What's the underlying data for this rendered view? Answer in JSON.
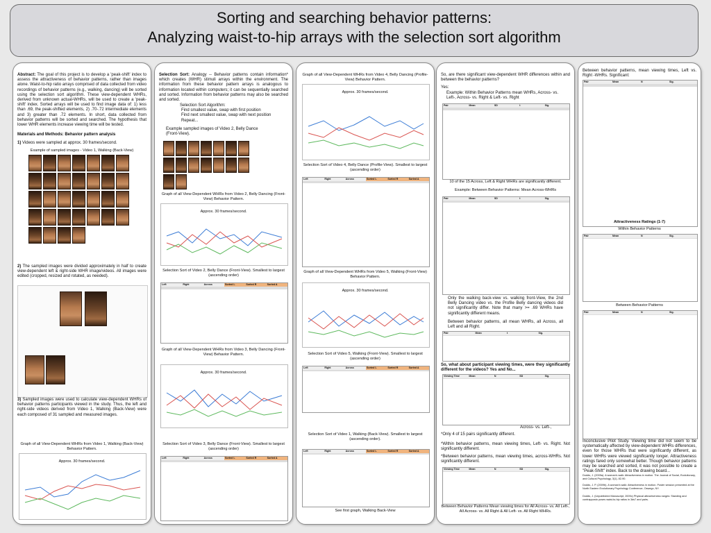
{
  "title": {
    "line1": "Sorting and searching behavior patterns:",
    "line2": "Analyzing waist-to-hip arrays with the selection sort algorithm"
  },
  "col1": {
    "abstract_label": "Abstract:",
    "abstract_text": "The goal of this project is to develop a 'peak-shift' index to assess the attractiveness of behavior patterns, rather than images alone. Waist-to-hip ratio arrays comprised of data collected from video recordings of behavior patterns (e.g., walking, dancing) will be sorted using the selection sort algorithm. These view-dependent WHRs, derived from unknown actual-WHRs, will be used to create a 'peak-shift' index. Sorted arrays will be used to find image data of: 1) less than .69, the peak-shifted elements, 2) .70-.72 intermediate elements and 3) greater than .72 elements. In short, data collected from behavior patterns will be sorted and searched. The hypothesis that lower WHR elements increase viewing time will be tested.",
    "methods_label": "Materials and Methods: Behavior pattern analysis",
    "step1": "Videos were sampled at approx. 30 frames/second.",
    "strip_caption": "Example of sampled images - Video 1, Walking (Back-View)",
    "step2": "The sampled images were divided approximately in half to create view-dependent left & right-side WHR image/videos. All images were edited (cropped, resized and rotated, as needed).",
    "step3": "Sampled images were used to calculate view-dependent WHRs of behavior patterns participants viewed in the study. Thus, the left and right-side videos derived from Video 1, Walking (Back-View) were each composed of 31 sampled and measured images.",
    "graph_caption": "Graph of all View-Dependent WHRs from Video 1, Walking (Back-View) Behavior Pattern.",
    "graph_label": "Approx. 30 frames/second.",
    "graph_axis": "WHRs"
  },
  "col2": {
    "selection_label": "Selection Sort:",
    "selection_text": "Analogy -- Behavior patterns contain information* which creates (WHR) stimuli arrays within the environment. The information from these behavior pattern arrays is analogous to information located within computers; it can be sequentially searched and sorted. Information from behavior patterns may also be searched and sorted.",
    "algo_title": "Selection Sort Algorithm:",
    "algo_step1": "Find smallest value, swap with first position",
    "algo_step2": "Find next smallest value, swap with next position",
    "algo_step3": "Repeat...",
    "video2_caption": "Example sampled images of Video 2, Belly Dance (Front-View).",
    "graph2_caption": "Graph of all View-Dependent WHRs from Video 2, Belly Dancing (Front-View) Behavior Pattern.",
    "graph2_label": "Approx. 30 frames/second.",
    "sort2_caption": "Selection Sort of Video 2, Belly Dance (Front-View). Smallest to largest (ascending order)",
    "graph3_caption": "Graph of all View-Dependent WHRs from Video 3, Belly Dancing (Front-View) Behavior Pattern.",
    "graph3_label": "Approx. 30 frames/second.",
    "sort3_caption": "Selection Sort of Video 3, Belly Dance (Front-View). Smallest to largest (ascending order)",
    "axis": "WHRs"
  },
  "col3": {
    "graph4_caption": "Graph of all View-Dependent WHRs from Video 4, Belly Dancing (Profile-View) Behavior Pattern.",
    "graph4_label": "Approx. 30 frames/second.",
    "sort4_caption": "Selection Sort of Video 4, Belly Dance (Profile-View). Smallest to largest (ascending order)",
    "graph5_caption": "Graph of all View-Dependent WHRs from Video 5, Walking (Front-View) Behavior Pattern.",
    "graph5_label": "Approx. 30 frames/second.",
    "sort5_caption": "Selection Sort of Video 5, Walking (Front-View). Smallest to largest (ascending order)",
    "sort1_caption": "Selection Sort of Video 1, Walking (Back-View). Smallest to largest (ascending order).",
    "first_graph": "See first graph, Walking Back-View",
    "axis": "WHRs"
  },
  "col4": {
    "q1": "So, are there significant view-dependent WHR differences within and between the behavior patterns?",
    "yes": "Yes:",
    "ex1": "Example: Within Behavior Patterns mean WHRs, Across- vs. Left-, Across- vs. Right & Left- vs. Right",
    "sig1": "10 of the 15 Across, Left & Right WHRs are significantly different.",
    "ex2": "Example: Between Behavior Patterns: Mean Across-WHRs",
    "note1": "Only the walking back-view vs. walking front-View, the 2nd Belly Dancing video vs. the Profile Belly dancing videos did not significantly differ. Note that many >= .69 WHRs have significantly different means.",
    "note2": "Between behavior patterns, all mean WHRs, all Across, all Left and all Right.",
    "q2": "So, what about participant viewing times, were they significantly different for the videos? Yes and No...",
    "across_note": "Across- vs. Left-,",
    "only4": "*Only 4 of 15 pairs significantly different.",
    "within_note": "*Within behavior patterns, mean viewing times, Left- vs. Right. Not significantly different.",
    "between_note": "*Between behavior patterns, mean viewing times, across-WHRs. Not significantly different.",
    "bottom_note": "Between Behavior Patterns Mean viewing times for All Across- vs. All Left-, All Across- vs. All Right & All Left- vs. All Right WHRs."
  },
  "col5": {
    "intro": "Between behavior patterns, mean viewing times, Left vs. Right -WHRs. Significant:",
    "att1": "Attractiveness Ratings (1-7)",
    "within": "Within Behavior Patterns",
    "between": "Between Behavior Patterns",
    "conclusion": "Inconclusive Pilot Study. Viewing time did not seem to be systematically affected by view-dependent WHRs differences, even for those WHRs that were significantly different, as lower WHRs were viewed significantly longer. Attractiveness ratings fared only somewhat better. Though behavior patterns may be searched and sorted, it was not possible to create a \"Peak-Shift\" index. Back to the drawing board...",
    "ref1": "Dodds, J. (2009a). A woman's walk: Attractiveness in motion. The Journal of Social, Evolutionary, and Cultural Psychology, 3(1), 82-90.",
    "ref2": "Dodds, J. P. (2009b). A woman's walk: Attractiveness in motion. Poster session presented at the North Eastern Evolutionary Psychology Conference, Oswego, NY.",
    "ref3": "Dodds, J. (Unpublished Manuscript, 2009c) Physical attractiveness ranges: Standing and contrapposto poses waist-to-hip ratios in 3ds7 and pairs."
  }
}
